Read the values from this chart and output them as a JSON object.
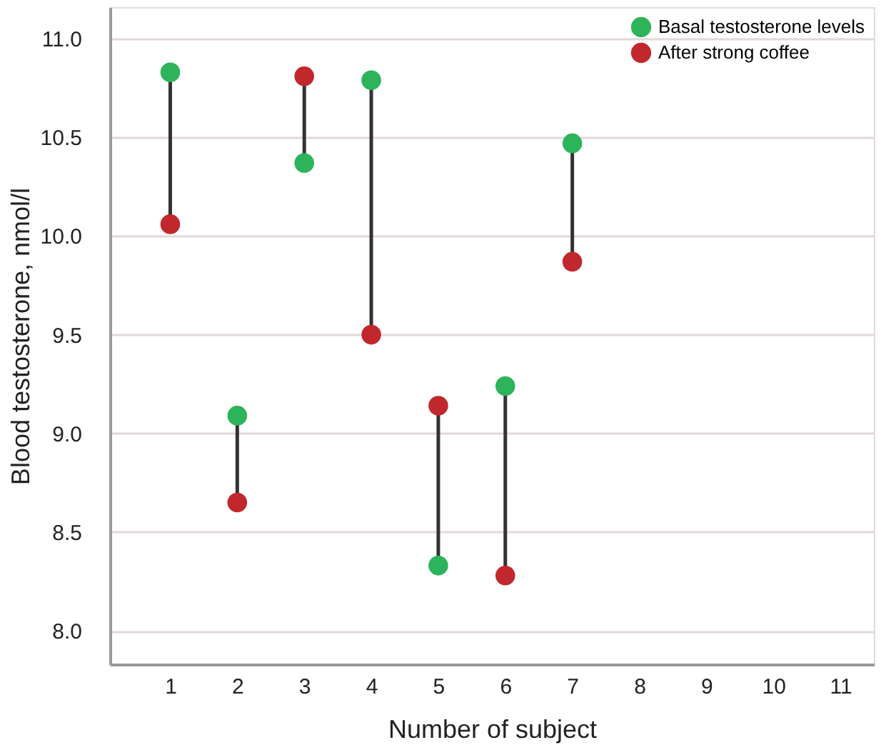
{
  "chart_data": {
    "type": "scatter",
    "xlabel": "Number of subject",
    "ylabel": "Blood testosterone, nmol/l",
    "categories": [
      "1",
      "2",
      "3",
      "4",
      "5",
      "6",
      "7",
      "8",
      "9",
      "10",
      "11"
    ],
    "series": [
      {
        "name": "Basal testosterone levels",
        "color": "#2db35a",
        "values": [
          10.83,
          9.09,
          10.37,
          10.79,
          8.33,
          9.24,
          10.47,
          null,
          null,
          null,
          null
        ]
      },
      {
        "name": "After strong coffee",
        "color": "#c0282d",
        "values": [
          10.06,
          8.65,
          10.81,
          9.5,
          9.14,
          8.28,
          9.87,
          null,
          null,
          null,
          null
        ]
      }
    ],
    "ylim": [
      7.83,
      11.16
    ],
    "yticks": [
      {
        "value": 8,
        "label": "8.0"
      },
      8.5,
      {
        "value": 9,
        "label": "9.0"
      },
      9.5,
      {
        "value": 10,
        "label": "10.0"
      },
      10.5,
      {
        "value": 11,
        "label": "11.0"
      }
    ],
    "grid": "y",
    "legend": "top right",
    "marker": "circle"
  }
}
